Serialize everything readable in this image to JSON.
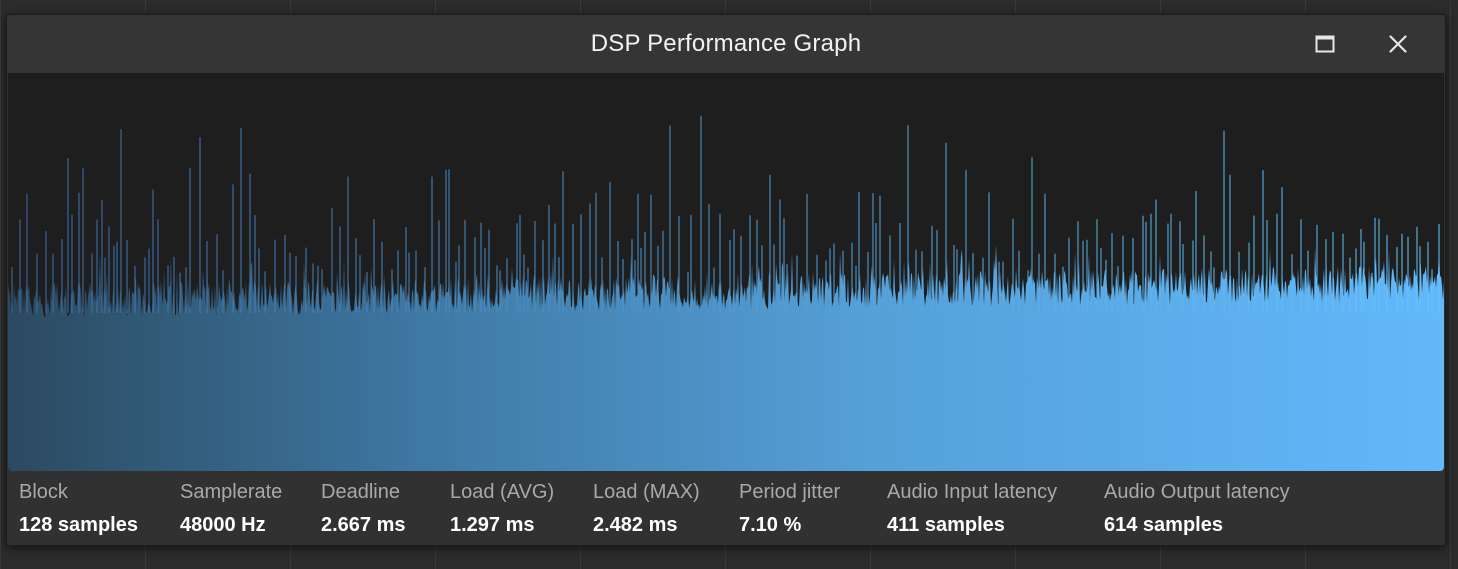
{
  "window": {
    "title": "DSP Performance Graph"
  },
  "controls": {
    "maximize_icon": "maximize-icon",
    "close_icon": "close-icon"
  },
  "graph": {
    "fill_color_start": "#2b4a60",
    "fill_color_end": "#62b8fb",
    "background": "#1e1e1e"
  },
  "stats": [
    {
      "label": "Block",
      "value": "128 samples"
    },
    {
      "label": "Samplerate",
      "value": "48000 Hz"
    },
    {
      "label": "Deadline",
      "value": "2.667 ms"
    },
    {
      "label": "Load (AVG)",
      "value": "1.297 ms"
    },
    {
      "label": "Load (MAX)",
      "value": "2.482 ms"
    },
    {
      "label": "Period jitter",
      "value": "7.10 %"
    },
    {
      "label": "Audio Input latency",
      "value": "411 samples"
    },
    {
      "label": "Audio Output latency",
      "value": "614 samples"
    }
  ]
}
